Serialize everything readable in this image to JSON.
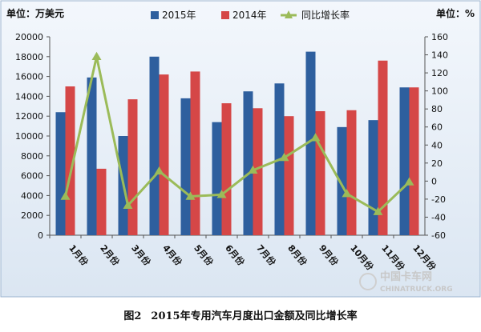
{
  "chart_data": {
    "type": "bar",
    "left_unit_label": "单位：万美元",
    "right_unit_label": "单位：%",
    "categories": [
      "1月份",
      "2月份",
      "3月份",
      "4月份",
      "5月份",
      "6月份",
      "7月份",
      "8月份",
      "9月份",
      "10月份",
      "11月份",
      "12月份"
    ],
    "series": [
      {
        "name": "2015年",
        "type": "bar",
        "axis": "left",
        "color": "#2e5f9e",
        "values": [
          12400,
          15900,
          10000,
          18000,
          13800,
          11400,
          14500,
          15300,
          18500,
          10900,
          11600,
          14900
        ]
      },
      {
        "name": "2014年",
        "type": "bar",
        "axis": "left",
        "color": "#d54747",
        "values": [
          15000,
          6700,
          13700,
          16200,
          16500,
          13300,
          12800,
          12000,
          12500,
          12600,
          17600,
          14900
        ]
      },
      {
        "name": "同比增长率",
        "type": "line",
        "axis": "right",
        "color": "#9bbb59",
        "values": [
          -17,
          138,
          -27,
          11,
          -17,
          -15,
          12,
          26,
          48,
          -14,
          -34,
          -1
        ]
      }
    ],
    "ylim_left": [
      0,
      20000
    ],
    "yticks_left": [
      "0",
      "2000",
      "4000",
      "6000",
      "8000",
      "10000",
      "12000",
      "14000",
      "16000",
      "18000",
      "20000"
    ],
    "ylim_right": [
      -60,
      160
    ],
    "yticks_right": [
      "-60",
      "-40",
      "-20",
      "0",
      "20",
      "40",
      "60",
      "80",
      "100",
      "120",
      "140",
      "160"
    ],
    "grid": false,
    "legend_position": "top"
  },
  "caption": {
    "figure_label": "图2",
    "title": "2015年专用汽车月度出口金额及同比增长率"
  },
  "watermark": {
    "line1": "中国卡车网",
    "line2": "CHINATRUCK.ORG"
  }
}
